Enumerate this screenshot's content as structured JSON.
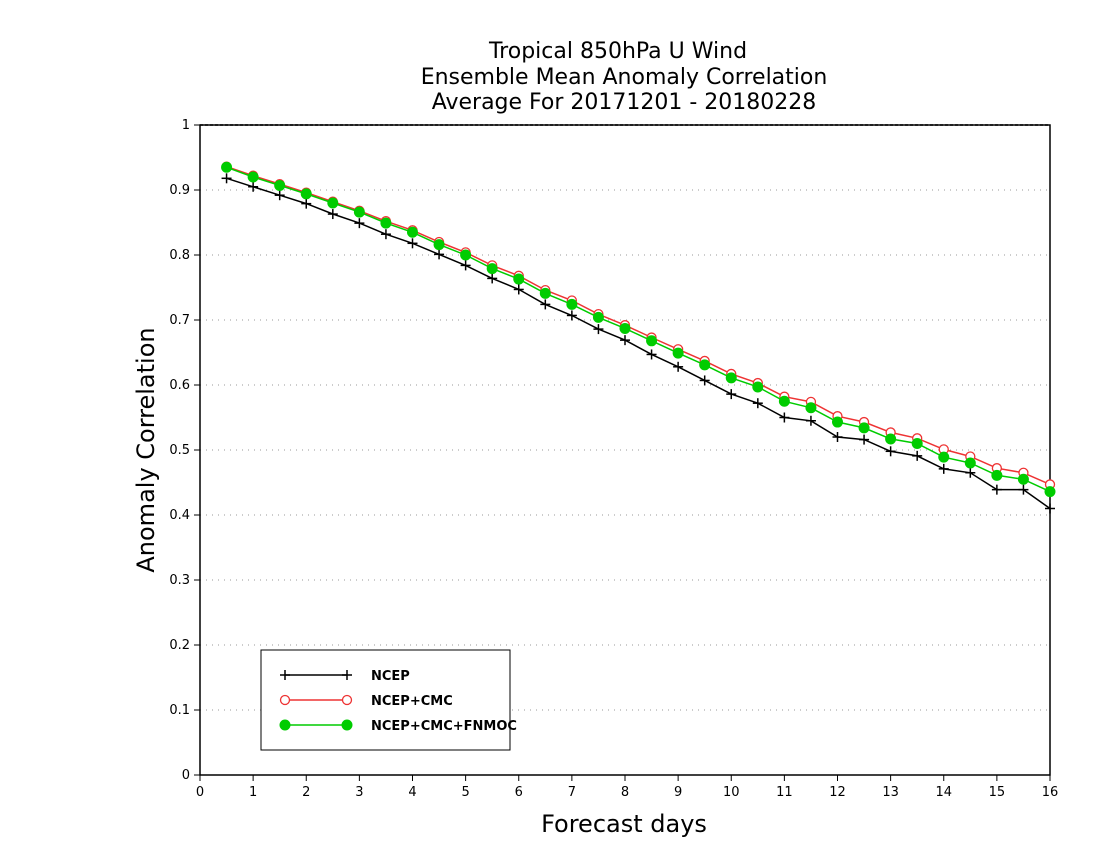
{
  "chart_data": {
    "type": "line",
    "title": [
      "Tropical 850hPa U Wind",
      "Ensemble Mean Anomaly Correlation",
      "Average For 20171201 - 20180228"
    ],
    "xlabel": "Forecast days",
    "ylabel": "Anomaly Correlation",
    "xlim": [
      0,
      16
    ],
    "ylim": [
      0,
      1
    ],
    "x_ticks": [
      "0",
      "1",
      "2",
      "3",
      "4",
      "5",
      "6",
      "7",
      "8",
      "9",
      "10",
      "11",
      "12",
      "13",
      "14",
      "15",
      "16"
    ],
    "y_ticks": [
      "0",
      "0.1",
      "0.2",
      "0.3",
      "0.4",
      "0.5",
      "0.6",
      "0.7",
      "0.8",
      "0.9",
      "1"
    ],
    "grid": true,
    "legend_position": "bottom-left",
    "x": [
      0.5,
      1,
      1.5,
      2,
      2.5,
      3,
      3.5,
      4,
      4.5,
      5,
      5.5,
      6,
      6.5,
      7,
      7.5,
      8,
      8.5,
      9,
      9.5,
      10,
      10.5,
      11,
      11.5,
      12,
      12.5,
      13,
      13.5,
      14,
      14.5,
      15,
      15.5,
      16
    ],
    "series": [
      {
        "name": "NCEP",
        "color": "#000000",
        "marker": "plus",
        "values": [
          0.918,
          0.905,
          0.892,
          0.879,
          0.863,
          0.849,
          0.832,
          0.818,
          0.801,
          0.784,
          0.764,
          0.747,
          0.724,
          0.707,
          0.686,
          0.669,
          0.647,
          0.628,
          0.607,
          0.586,
          0.572,
          0.55,
          0.545,
          0.52,
          0.516,
          0.498,
          0.491,
          0.471,
          0.465,
          0.439,
          0.439,
          0.41
        ]
      },
      {
        "name": "NCEP+CMC",
        "color": "#ee3333",
        "marker": "open-circle",
        "values": [
          0.936,
          0.922,
          0.909,
          0.896,
          0.882,
          0.868,
          0.852,
          0.838,
          0.82,
          0.804,
          0.784,
          0.768,
          0.746,
          0.73,
          0.709,
          0.692,
          0.673,
          0.655,
          0.637,
          0.617,
          0.603,
          0.582,
          0.574,
          0.552,
          0.543,
          0.527,
          0.518,
          0.501,
          0.49,
          0.472,
          0.465,
          0.447
        ]
      },
      {
        "name": "NCEP+CMC+FNMOC",
        "color": "#00cc00",
        "marker": "filled-circle",
        "values": [
          0.935,
          0.92,
          0.907,
          0.894,
          0.88,
          0.866,
          0.849,
          0.835,
          0.816,
          0.8,
          0.779,
          0.763,
          0.741,
          0.724,
          0.704,
          0.687,
          0.668,
          0.649,
          0.631,
          0.611,
          0.597,
          0.575,
          0.565,
          0.543,
          0.534,
          0.517,
          0.51,
          0.489,
          0.48,
          0.461,
          0.455,
          0.436
        ]
      }
    ]
  }
}
